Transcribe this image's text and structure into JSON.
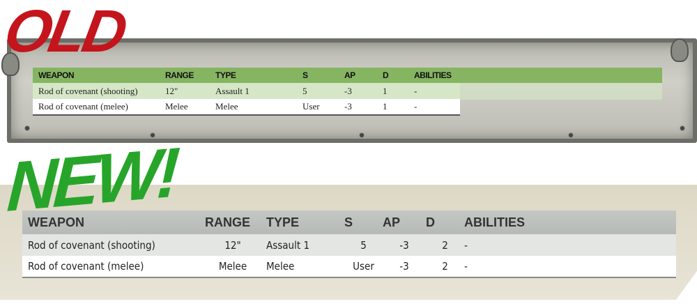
{
  "old": {
    "label": "OLD",
    "label_color": "#c4151c",
    "header_color": "#86b562",
    "headers": [
      "WEAPON",
      "RANGE",
      "TYPE",
      "S",
      "AP",
      "D",
      "ABILITIES"
    ],
    "rows": [
      [
        "Rod of covenant (shooting)",
        "12\"",
        "Assault 1",
        "5",
        "-3",
        "1",
        "-"
      ],
      [
        "Rod of covenant (melee)",
        "Melee",
        "Melee",
        "User",
        "-3",
        "1",
        "-"
      ]
    ]
  },
  "new": {
    "label": "NEW!",
    "label_color": "#27a52a",
    "header_color": "#b9bdb9",
    "headers": [
      "WEAPON",
      "RANGE",
      "TYPE",
      "S",
      "AP",
      "D",
      "ABILITIES"
    ],
    "rows": [
      [
        "Rod of covenant (shooting)",
        "12\"",
        "Assault 1",
        "5",
        "-3",
        "2",
        "-"
      ],
      [
        "Rod of covenant (melee)",
        "Melee",
        "Melee",
        "User",
        "-3",
        "2",
        "-"
      ]
    ]
  }
}
